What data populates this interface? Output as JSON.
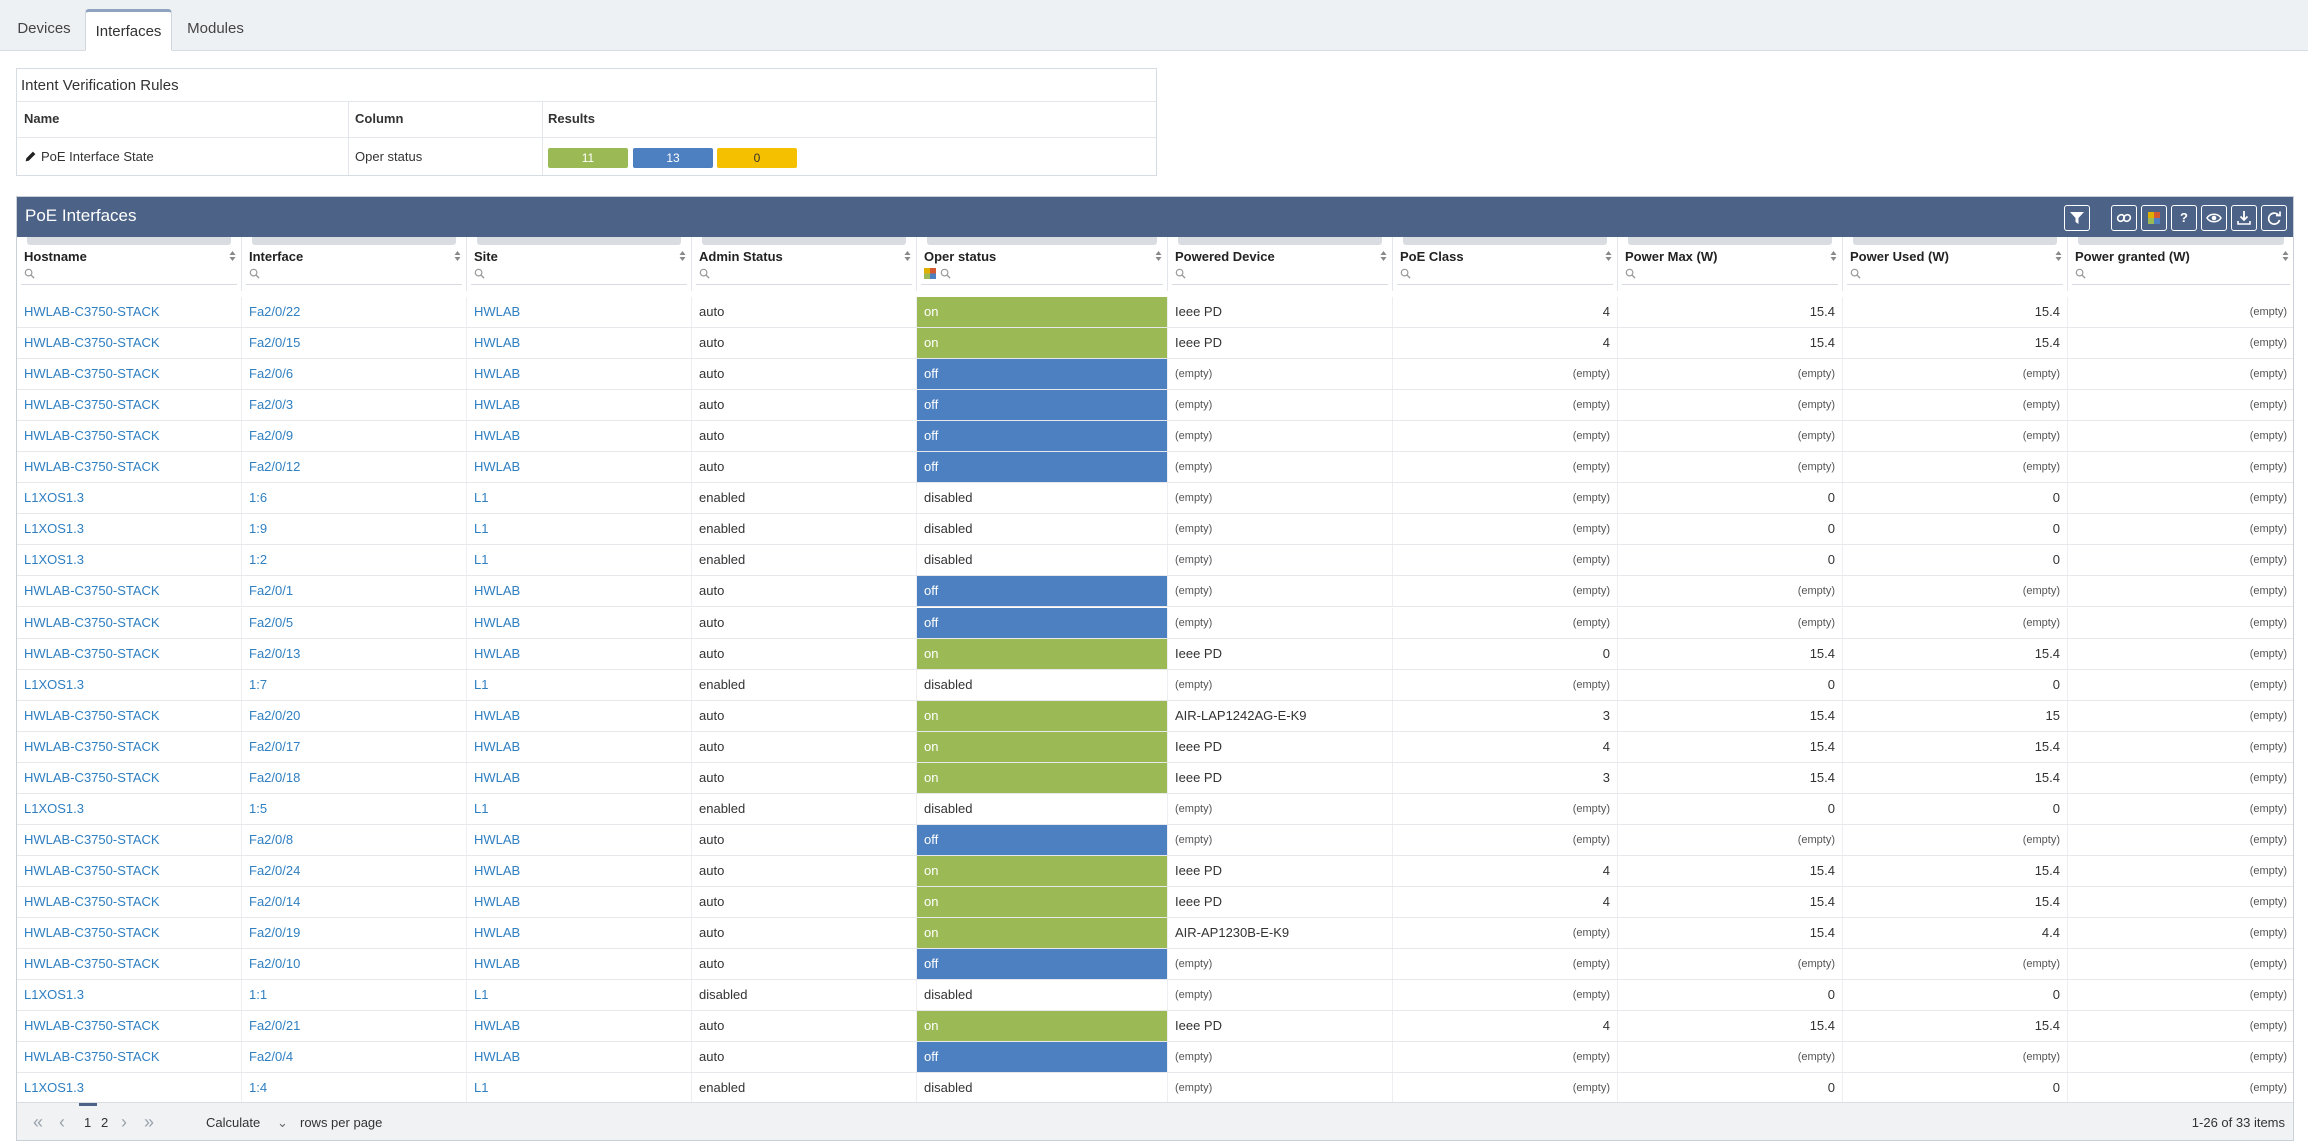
{
  "tabs": [
    {
      "label": "Devices",
      "active": false
    },
    {
      "label": "Interfaces",
      "active": true
    },
    {
      "label": "Modules",
      "active": false
    }
  ],
  "intent": {
    "title": "Intent Verification Rules",
    "headers": {
      "name": "Name",
      "column": "Column",
      "results": "Results"
    },
    "rule": {
      "name": "PoE Interface State",
      "column": "Oper status"
    },
    "results": [
      {
        "value": "11",
        "color": "#9bba55"
      },
      {
        "value": "13",
        "color": "#4d80c1"
      },
      {
        "value": "0",
        "color": "#f5c000"
      }
    ]
  },
  "grid": {
    "title": "PoE Interfaces",
    "toolbar": [
      "filter-clear-icon",
      "link-icon",
      "color-legend-icon",
      "help-icon",
      "eye-icon",
      "download-icon",
      "refresh-icon"
    ],
    "help_glyph": "?",
    "columns": [
      "Hostname",
      "Interface",
      "Site",
      "Admin Status",
      "Oper status",
      "Powered Device",
      "PoE Class",
      "Power Max (W)",
      "Power Used (W)",
      "Power granted (W)"
    ],
    "rows": [
      [
        "HWLAB-C3750-STACK",
        "Fa2/0/22",
        "HWLAB",
        "auto",
        "on",
        "Ieee PD",
        "4",
        "15.4",
        "15.4",
        "(empty)"
      ],
      [
        "HWLAB-C3750-STACK",
        "Fa2/0/15",
        "HWLAB",
        "auto",
        "on",
        "Ieee PD",
        "4",
        "15.4",
        "15.4",
        "(empty)"
      ],
      [
        "HWLAB-C3750-STACK",
        "Fa2/0/6",
        "HWLAB",
        "auto",
        "off",
        "(empty)",
        "(empty)",
        "(empty)",
        "(empty)",
        "(empty)"
      ],
      [
        "HWLAB-C3750-STACK",
        "Fa2/0/3",
        "HWLAB",
        "auto",
        "off",
        "(empty)",
        "(empty)",
        "(empty)",
        "(empty)",
        "(empty)"
      ],
      [
        "HWLAB-C3750-STACK",
        "Fa2/0/9",
        "HWLAB",
        "auto",
        "off",
        "(empty)",
        "(empty)",
        "(empty)",
        "(empty)",
        "(empty)"
      ],
      [
        "HWLAB-C3750-STACK",
        "Fa2/0/12",
        "HWLAB",
        "auto",
        "off",
        "(empty)",
        "(empty)",
        "(empty)",
        "(empty)",
        "(empty)"
      ],
      [
        "L1XOS1.3",
        "1:6",
        "L1",
        "enabled",
        "disabled",
        "(empty)",
        "(empty)",
        "0",
        "0",
        "(empty)"
      ],
      [
        "L1XOS1.3",
        "1:9",
        "L1",
        "enabled",
        "disabled",
        "(empty)",
        "(empty)",
        "0",
        "0",
        "(empty)"
      ],
      [
        "L1XOS1.3",
        "1:2",
        "L1",
        "enabled",
        "disabled",
        "(empty)",
        "(empty)",
        "0",
        "0",
        "(empty)"
      ],
      [
        "HWLAB-C3750-STACK",
        "Fa2/0/1",
        "HWLAB",
        "auto",
        "off",
        "(empty)",
        "(empty)",
        "(empty)",
        "(empty)",
        "(empty)"
      ],
      [
        "HWLAB-C3750-STACK",
        "Fa2/0/5",
        "HWLAB",
        "auto",
        "off",
        "(empty)",
        "(empty)",
        "(empty)",
        "(empty)",
        "(empty)"
      ],
      [
        "HWLAB-C3750-STACK",
        "Fa2/0/13",
        "HWLAB",
        "auto",
        "on",
        "Ieee PD",
        "0",
        "15.4",
        "15.4",
        "(empty)"
      ],
      [
        "L1XOS1.3",
        "1:7",
        "L1",
        "enabled",
        "disabled",
        "(empty)",
        "(empty)",
        "0",
        "0",
        "(empty)"
      ],
      [
        "HWLAB-C3750-STACK",
        "Fa2/0/20",
        "HWLAB",
        "auto",
        "on",
        "AIR-LAP1242AG-E-K9",
        "3",
        "15.4",
        "15",
        "(empty)"
      ],
      [
        "HWLAB-C3750-STACK",
        "Fa2/0/17",
        "HWLAB",
        "auto",
        "on",
        "Ieee PD",
        "4",
        "15.4",
        "15.4",
        "(empty)"
      ],
      [
        "HWLAB-C3750-STACK",
        "Fa2/0/18",
        "HWLAB",
        "auto",
        "on",
        "Ieee PD",
        "3",
        "15.4",
        "15.4",
        "(empty)"
      ],
      [
        "L1XOS1.3",
        "1:5",
        "L1",
        "enabled",
        "disabled",
        "(empty)",
        "(empty)",
        "0",
        "0",
        "(empty)"
      ],
      [
        "HWLAB-C3750-STACK",
        "Fa2/0/8",
        "HWLAB",
        "auto",
        "off",
        "(empty)",
        "(empty)",
        "(empty)",
        "(empty)",
        "(empty)"
      ],
      [
        "HWLAB-C3750-STACK",
        "Fa2/0/24",
        "HWLAB",
        "auto",
        "on",
        "Ieee PD",
        "4",
        "15.4",
        "15.4",
        "(empty)"
      ],
      [
        "HWLAB-C3750-STACK",
        "Fa2/0/14",
        "HWLAB",
        "auto",
        "on",
        "Ieee PD",
        "4",
        "15.4",
        "15.4",
        "(empty)"
      ],
      [
        "HWLAB-C3750-STACK",
        "Fa2/0/19",
        "HWLAB",
        "auto",
        "on",
        "AIR-AP1230B-E-K9",
        "(empty)",
        "15.4",
        "4.4",
        "(empty)"
      ],
      [
        "HWLAB-C3750-STACK",
        "Fa2/0/10",
        "HWLAB",
        "auto",
        "off",
        "(empty)",
        "(empty)",
        "(empty)",
        "(empty)",
        "(empty)"
      ],
      [
        "L1XOS1.3",
        "1:1",
        "L1",
        "disabled",
        "disabled",
        "(empty)",
        "(empty)",
        "0",
        "0",
        "(empty)"
      ],
      [
        "HWLAB-C3750-STACK",
        "Fa2/0/21",
        "HWLAB",
        "auto",
        "on",
        "Ieee PD",
        "4",
        "15.4",
        "15.4",
        "(empty)"
      ],
      [
        "HWLAB-C3750-STACK",
        "Fa2/0/4",
        "HWLAB",
        "auto",
        "off",
        "(empty)",
        "(empty)",
        "(empty)",
        "(empty)",
        "(empty)"
      ],
      [
        "L1XOS1.3",
        "1:4",
        "L1",
        "enabled",
        "disabled",
        "(empty)",
        "(empty)",
        "0",
        "0",
        "(empty)"
      ]
    ]
  },
  "pagination": {
    "pages": [
      "1",
      "2"
    ],
    "current_page": "1",
    "rows_per_page_value": "Calculate",
    "rows_per_page_label": "rows per page",
    "summary": "1-26 of 33 items"
  },
  "colors": {
    "on": "#9bba55",
    "off": "#4d80c1",
    "header": "#4c6286",
    "link": "#2f7fc1"
  }
}
